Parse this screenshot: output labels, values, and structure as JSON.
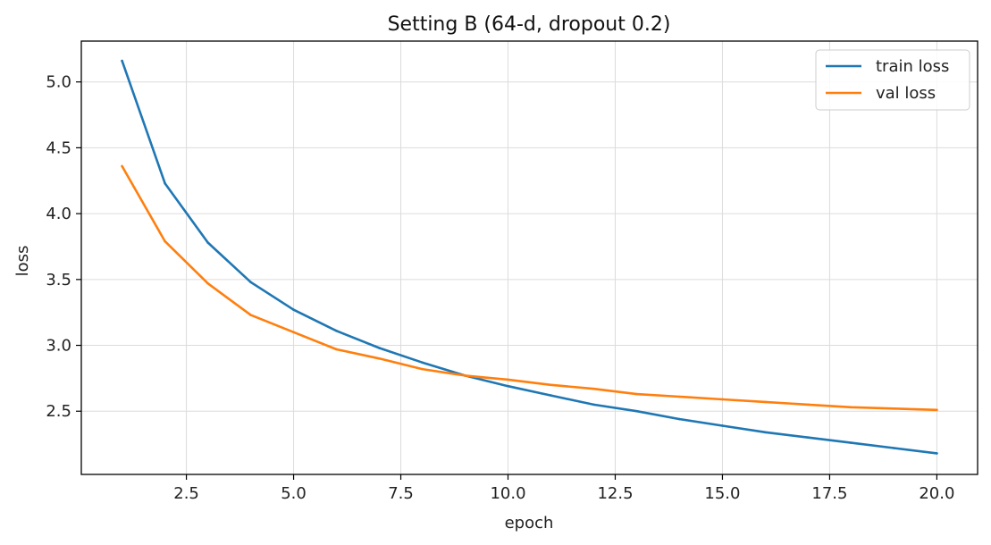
{
  "chart_data": {
    "type": "line",
    "title": "Setting B (64-d, dropout 0.2)",
    "xlabel": "epoch",
    "ylabel": "loss",
    "xlim": [
      0.05,
      20.95
    ],
    "ylim": [
      2.02,
      5.31
    ],
    "xticks": [
      2.5,
      5.0,
      7.5,
      10.0,
      12.5,
      15.0,
      17.5,
      20.0
    ],
    "xtick_labels": [
      "2.5",
      "5.0",
      "7.5",
      "10.0",
      "12.5",
      "15.0",
      "17.5",
      "20.0"
    ],
    "yticks": [
      2.5,
      3.0,
      3.5,
      4.0,
      4.5,
      5.0
    ],
    "ytick_labels": [
      "2.5",
      "3.0",
      "3.5",
      "4.0",
      "4.5",
      "5.0"
    ],
    "grid": true,
    "legend_position": "top-right",
    "x": [
      1,
      2,
      3,
      4,
      5,
      6,
      7,
      8,
      9,
      10,
      11,
      12,
      13,
      14,
      15,
      16,
      17,
      18,
      19,
      20
    ],
    "series": [
      {
        "name": "train loss",
        "color": "#1f77b4",
        "values": [
          5.16,
          4.23,
          3.78,
          3.48,
          3.27,
          3.11,
          2.98,
          2.87,
          2.77,
          2.69,
          2.62,
          2.55,
          2.5,
          2.44,
          2.39,
          2.34,
          2.3,
          2.26,
          2.22,
          2.18
        ]
      },
      {
        "name": "val loss",
        "color": "#ff7f0e",
        "values": [
          4.36,
          3.79,
          3.47,
          3.23,
          3.1,
          2.97,
          2.9,
          2.82,
          2.77,
          2.74,
          2.7,
          2.67,
          2.63,
          2.61,
          2.59,
          2.57,
          2.55,
          2.53,
          2.52,
          2.51
        ]
      }
    ]
  }
}
